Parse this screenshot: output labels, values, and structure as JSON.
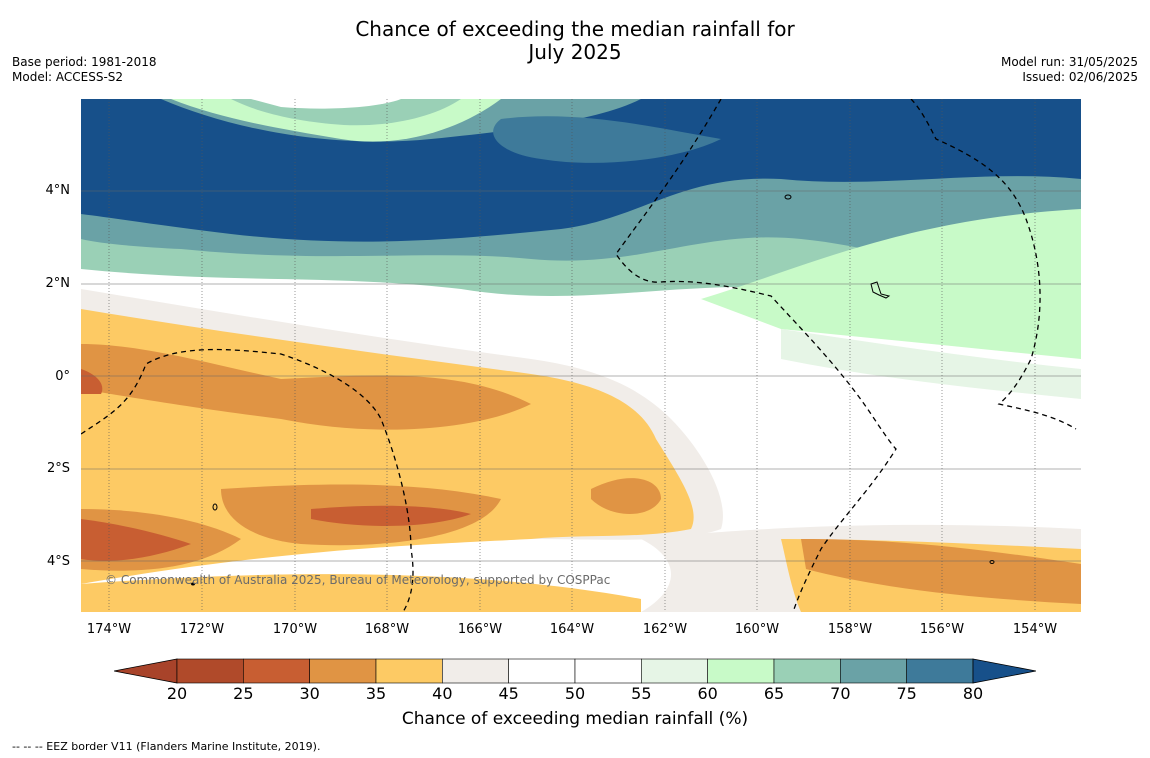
{
  "title_line1": "Chance of exceeding the median rainfall for",
  "title_line2": "July 2025",
  "base_period": "Base period: 1981-2018",
  "model": "Model: ACCESS-S2",
  "model_run": "Model run: 31/05/2025",
  "issued": "Issued: 02/06/2025",
  "lat_labels": [
    "4°N",
    "2°N",
    "0°",
    "2°S",
    "4°S"
  ],
  "lon_labels": [
    "174°W",
    "172°W",
    "170°W",
    "168°W",
    "166°W",
    "164°W",
    "162°W",
    "160°W",
    "158°W",
    "156°W",
    "154°W"
  ],
  "copyright": "© Commonwealth of Australia 2025, Bureau of Meteorology, supported by COSPPac",
  "colorbar": {
    "ticks": [
      "20",
      "25",
      "30",
      "35",
      "40",
      "45",
      "50",
      "55",
      "60",
      "65",
      "70",
      "75",
      "80"
    ],
    "colors": [
      "#a8432a",
      "#b04a2a",
      "#c85e32",
      "#e09444",
      "#fdca64",
      "#f1ede9",
      "#ffffff",
      "#ffffff",
      "#e6f5e6",
      "#c8fac8",
      "#9ad0b6",
      "#6aa2a6",
      "#3e7a9a",
      "#17508a"
    ],
    "label": "Chance of exceeding median rainfall (%)"
  },
  "footnote": "--  --  -- EEZ border V11 (Flanders Marine Institute, 2019)."
}
